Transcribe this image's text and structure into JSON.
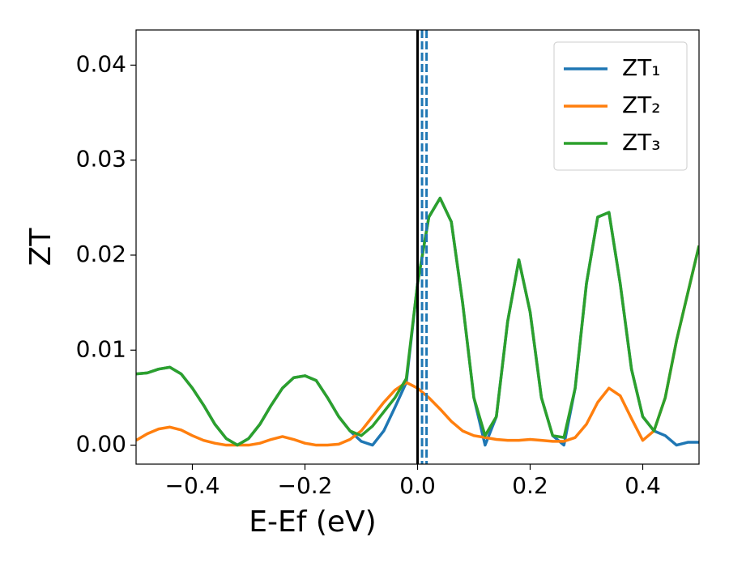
{
  "chart_data": {
    "type": "line",
    "xlabel": "E-Ef (eV)",
    "ylabel": "ZT",
    "x": [
      -0.5,
      -0.48,
      -0.46,
      -0.44,
      -0.42,
      -0.4,
      -0.38,
      -0.36,
      -0.34,
      -0.32,
      -0.3,
      -0.28,
      -0.26,
      -0.24,
      -0.22,
      -0.2,
      -0.18,
      -0.16,
      -0.14,
      -0.12,
      -0.1,
      -0.08,
      -0.06,
      -0.04,
      -0.02,
      0.0,
      0.02,
      0.04,
      0.06,
      0.08,
      0.1,
      0.12,
      0.14,
      0.16,
      0.18,
      0.2,
      0.22,
      0.24,
      0.26,
      0.28,
      0.3,
      0.32,
      0.34,
      0.36,
      0.38,
      0.4,
      0.42,
      0.44,
      0.46,
      0.48,
      0.5
    ],
    "series": [
      {
        "name": "ZT₁",
        "color": "#1f77b4",
        "values": [
          0.0075,
          0.0076,
          0.008,
          0.0082,
          0.0075,
          0.006,
          0.0042,
          0.0022,
          0.0007,
          0.0,
          0.0007,
          0.0022,
          0.0042,
          0.006,
          0.0071,
          0.0073,
          0.0068,
          0.005,
          0.003,
          0.0015,
          0.0004,
          0.0,
          0.0015,
          0.004,
          0.0066,
          0.017,
          0.024,
          0.026,
          0.0235,
          0.015,
          0.005,
          0.0,
          0.003,
          0.013,
          0.0195,
          0.014,
          0.005,
          0.001,
          0.0,
          0.006,
          0.017,
          0.024,
          0.0245,
          0.017,
          0.008,
          0.003,
          0.0015,
          0.001,
          0.0,
          0.0003,
          0.0003
        ]
      },
      {
        "name": "ZT₂",
        "color": "#ff7f0e",
        "values": [
          0.0005,
          0.0012,
          0.0017,
          0.0019,
          0.0016,
          0.001,
          0.0005,
          0.0002,
          0.0,
          0.0,
          0.0,
          0.0002,
          0.0006,
          0.0009,
          0.0006,
          0.0002,
          0.0,
          0.0,
          0.0001,
          0.0006,
          0.0015,
          0.003,
          0.0045,
          0.0058,
          0.0066,
          0.006,
          0.005,
          0.0038,
          0.0025,
          0.0015,
          0.001,
          0.0008,
          0.0006,
          0.0005,
          0.0005,
          0.0006,
          0.0005,
          0.0004,
          0.0004,
          0.0008,
          0.0022,
          0.0045,
          0.006,
          0.0052,
          0.0028,
          0.0005,
          0.0015,
          0.005,
          0.011,
          0.016,
          0.021
        ]
      },
      {
        "name": "ZT₃",
        "color": "#2ca02c",
        "values": [
          0.0075,
          0.0076,
          0.008,
          0.0082,
          0.0075,
          0.006,
          0.0042,
          0.0022,
          0.0007,
          0.0,
          0.0007,
          0.0022,
          0.0042,
          0.006,
          0.0071,
          0.0073,
          0.0068,
          0.005,
          0.003,
          0.0015,
          0.001,
          0.002,
          0.0035,
          0.005,
          0.007,
          0.017,
          0.024,
          0.026,
          0.0235,
          0.015,
          0.005,
          0.001,
          0.003,
          0.013,
          0.0195,
          0.014,
          0.005,
          0.001,
          0.0008,
          0.006,
          0.017,
          0.024,
          0.0245,
          0.017,
          0.008,
          0.003,
          0.0015,
          0.005,
          0.011,
          0.016,
          0.021
        ]
      }
    ],
    "vlines": [
      {
        "x": 0,
        "color": "#000000",
        "style": "solid"
      },
      {
        "x": 0.008,
        "color": "#1f77b4",
        "style": "dashed"
      },
      {
        "x": 0.016,
        "color": "#1f77b4",
        "style": "dashed"
      }
    ],
    "xlim": [
      -0.5,
      0.5
    ],
    "ylim": [
      -0.002,
      0.0437
    ],
    "xticks": [
      {
        "value": -0.4,
        "label": "−0.4"
      },
      {
        "value": -0.2,
        "label": "−0.2"
      },
      {
        "value": 0.0,
        "label": "0.0"
      },
      0.2,
      0.4
    ],
    "yticks": [
      {
        "value": 0.0,
        "label": "0.00"
      },
      {
        "value": 0.01,
        "label": "0.01"
      },
      {
        "value": 0.02,
        "label": "0.02"
      },
      {
        "value": 0.03,
        "label": "0.03"
      },
      {
        "value": 0.04,
        "label": "0.04"
      }
    ],
    "legend": "upper right",
    "grid": false
  }
}
